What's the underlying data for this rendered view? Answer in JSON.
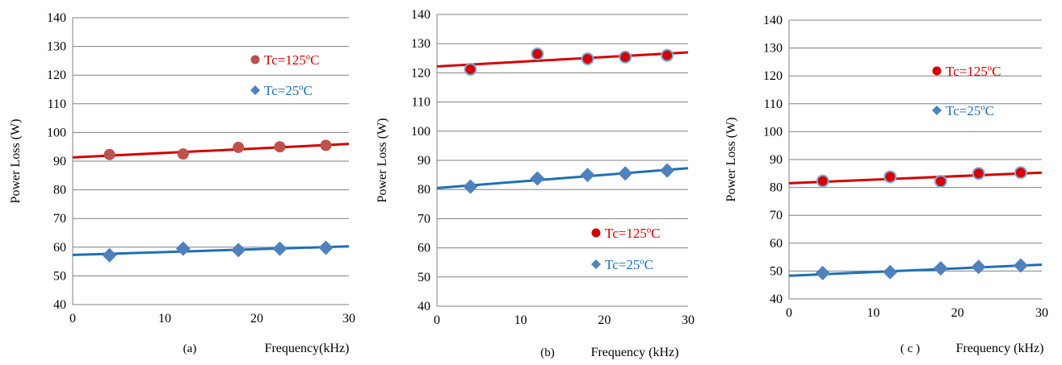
{
  "colors": {
    "hot": "#d40000",
    "cold": "#1f6fb5",
    "hot_marker_a": "#c0504d",
    "cold_marker": "#4f81bd",
    "marker_outline": "#7ab0d6",
    "grid": "#808080"
  },
  "chart_data": [
    {
      "type": "scatter",
      "caption": "(a)",
      "xlabel": "Frequency(kHz)",
      "ylabel": "Power Loss (W)",
      "xlim": [
        0,
        30
      ],
      "ylim": [
        40,
        140
      ],
      "xticks": [
        "0",
        "10",
        "20",
        "30"
      ],
      "yticks": [
        "40",
        "50",
        "60",
        "70",
        "80",
        "90",
        "100",
        "110",
        "120",
        "130",
        "140"
      ],
      "grid": "horizontal",
      "legend_position": "upper-right",
      "series": [
        {
          "name": "Tc=125ºC",
          "marker": "circle",
          "color_key": "hot",
          "x": [
            4,
            12,
            18,
            22.5,
            27.5
          ],
          "y": [
            92.3,
            92.5,
            94.8,
            95.0,
            95.5
          ],
          "trend": [
            [
              0,
              91.3
            ],
            [
              30,
              96.0
            ]
          ]
        },
        {
          "name": "Tc=25ºC",
          "marker": "diamond",
          "color_key": "cold",
          "x": [
            4,
            12,
            18,
            22.5,
            27.5
          ],
          "y": [
            57.2,
            59.5,
            59.0,
            59.5,
            59.8
          ],
          "trend": [
            [
              0,
              57.3
            ],
            [
              30,
              60.3
            ]
          ]
        }
      ]
    },
    {
      "type": "scatter",
      "caption": "(b)",
      "xlabel": "Frequency (kHz)",
      "ylabel": "Power Loss (W)",
      "xlim": [
        0,
        30
      ],
      "ylim": [
        40,
        140
      ],
      "xticks": [
        "0",
        "10",
        "20",
        "30"
      ],
      "yticks": [
        "40",
        "50",
        "60",
        "70",
        "80",
        "90",
        "100",
        "110",
        "120",
        "130",
        "140"
      ],
      "grid": "horizontal",
      "legend_position": "lower-right",
      "series": [
        {
          "name": "Tc=125ºC",
          "marker": "circle",
          "color_key": "hot",
          "x": [
            4,
            12,
            18,
            22.5,
            27.5
          ],
          "y": [
            121.2,
            126.5,
            124.8,
            125.4,
            126.0
          ],
          "trend": [
            [
              0,
              122.2
            ],
            [
              30,
              127.0
            ]
          ]
        },
        {
          "name": "Tc=25ºC",
          "marker": "diamond",
          "color_key": "cold",
          "x": [
            4,
            12,
            18,
            22.5,
            27.5
          ],
          "y": [
            81.0,
            83.8,
            85.0,
            85.5,
            86.5
          ],
          "trend": [
            [
              0,
              80.5
            ],
            [
              30,
              87.3
            ]
          ]
        }
      ]
    },
    {
      "type": "scatter",
      "caption": "( c )",
      "xlabel": "Frequency (kHz)",
      "ylabel": "Power Loss (W)",
      "xlim": [
        0,
        30
      ],
      "ylim": [
        40,
        140
      ],
      "xticks": [
        "0",
        "10",
        "20",
        "30"
      ],
      "yticks": [
        "40",
        "50",
        "60",
        "70",
        "80",
        "90",
        "100",
        "110",
        "120",
        "130",
        "140"
      ],
      "grid": "horizontal",
      "legend_position": "upper-center",
      "series": [
        {
          "name": "Tc=125ºC",
          "marker": "circle",
          "color_key": "hot",
          "x": [
            4,
            12,
            18,
            22.5,
            27.5
          ],
          "y": [
            82.3,
            83.8,
            82.2,
            85.0,
            85.3
          ],
          "trend": [
            [
              0,
              81.5
            ],
            [
              30,
              85.3
            ]
          ]
        },
        {
          "name": "Tc=25ºC",
          "marker": "diamond",
          "color_key": "cold",
          "x": [
            4,
            12,
            18,
            22.5,
            27.5
          ],
          "y": [
            49.3,
            49.6,
            51.0,
            51.5,
            52.0
          ],
          "trend": [
            [
              0,
              48.3
            ],
            [
              30,
              52.3
            ]
          ]
        }
      ]
    }
  ]
}
